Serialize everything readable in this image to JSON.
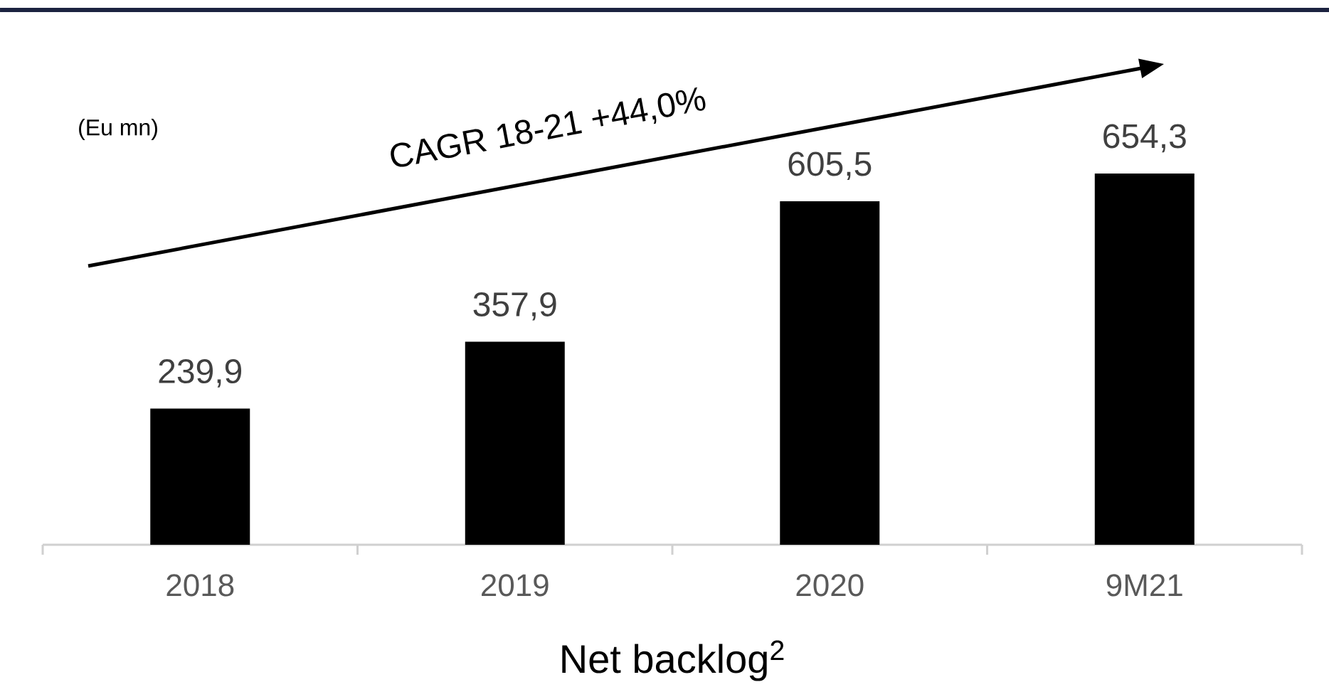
{
  "chart_data": {
    "type": "bar",
    "xlabel": "Net backlog$^{2}$",
    "categories": [
      "2018",
      "2019",
      "2020",
      "9M21"
    ],
    "values": [
      239.9,
      357.9,
      605.5,
      654.3
    ],
    "value_labels": [
      "239,9",
      "357,9",
      "605,5",
      "654,3"
    ],
    "color": "#000000",
    "annotations": [
      "(Eu mn)",
      "CAGR 18-21 +44,0%"
    ]
  }
}
